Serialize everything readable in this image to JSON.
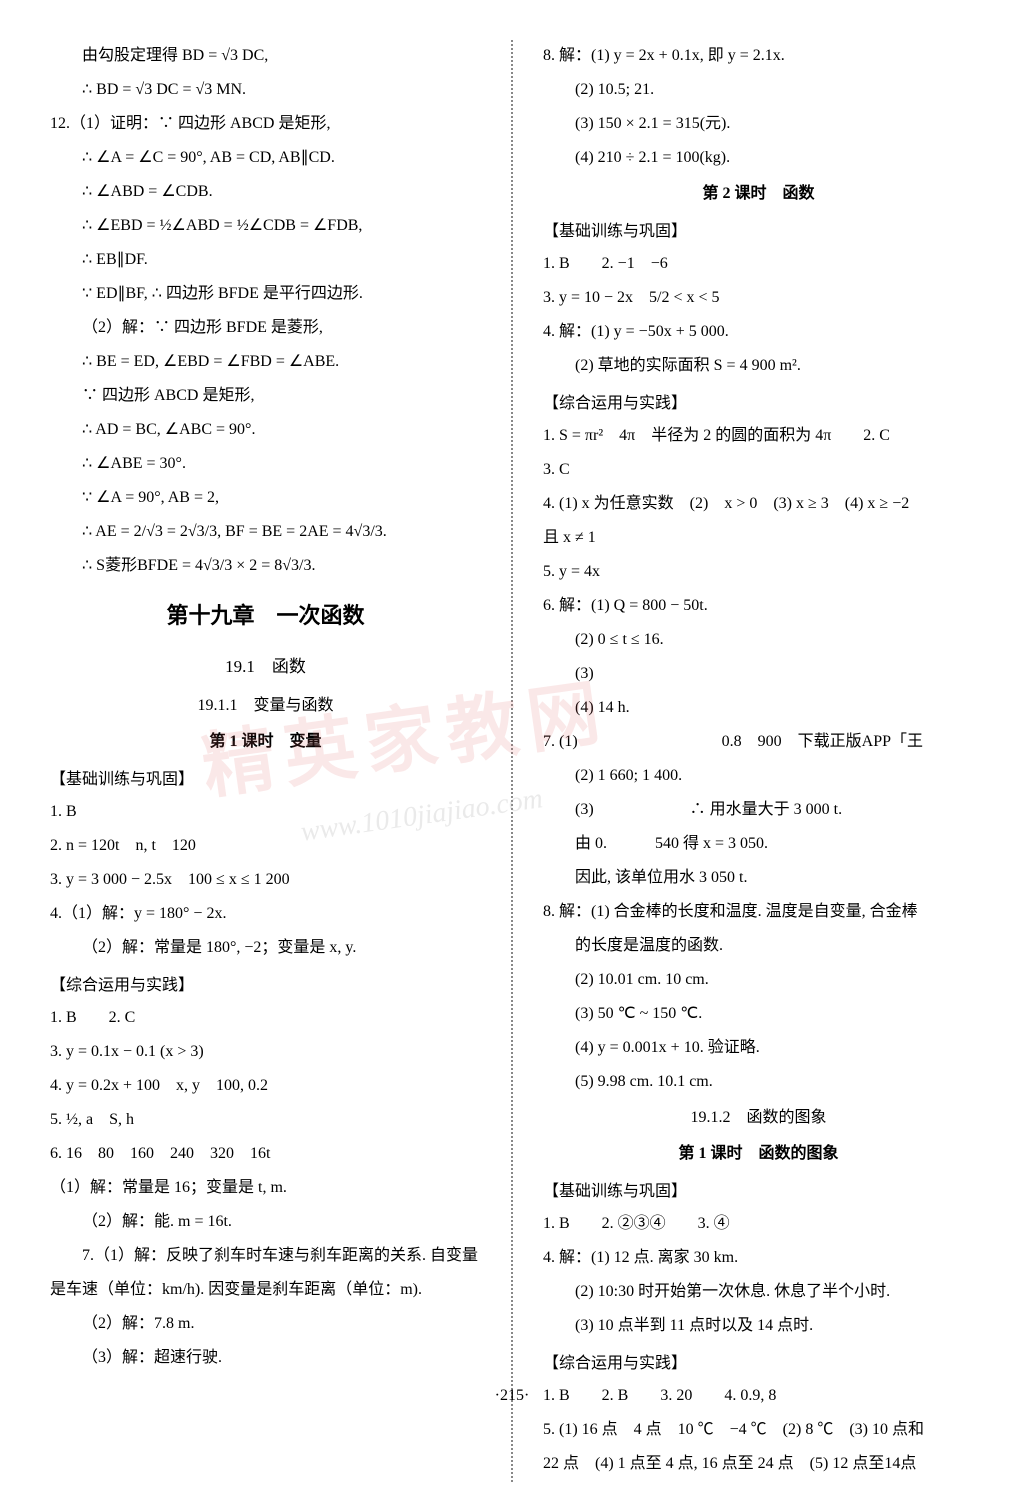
{
  "page_number": "·215·",
  "watermark_text": "精英家教网",
  "watermark_url": "www.1010jiajiao.com",
  "left_column": {
    "lines": [
      {
        "text": "由勾股定理得 BD = √3 DC,",
        "indent": 1
      },
      {
        "text": "∴ BD = √3 DC = √3 MN.",
        "indent": 1
      },
      {
        "text": "12.（1）证明：∵ 四边形 ABCD 是矩形,",
        "indent": 0
      },
      {
        "text": "∴ ∠A = ∠C = 90°, AB = CD, AB∥CD.",
        "indent": 1
      },
      {
        "text": "∴ ∠ABD = ∠CDB.",
        "indent": 1
      },
      {
        "text": "∴ ∠EBD = ½∠ABD = ½∠CDB = ∠FDB,",
        "indent": 1
      },
      {
        "text": "∴ EB∥DF.",
        "indent": 1
      },
      {
        "text": "∵ ED∥BF, ∴ 四边形 BFDE 是平行四边形.",
        "indent": 1
      },
      {
        "text": "（2）解：∵ 四边形 BFDE 是菱形,",
        "indent": 1
      },
      {
        "text": "∴ BE = ED, ∠EBD = ∠FBD = ∠ABE.",
        "indent": 1
      },
      {
        "text": "∵ 四边形 ABCD 是矩形,",
        "indent": 1
      },
      {
        "text": "∴ AD = BC, ∠ABC = 90°.",
        "indent": 1
      },
      {
        "text": "∴ ∠ABE = 30°.",
        "indent": 1
      },
      {
        "text": "∵ ∠A = 90°, AB = 2,",
        "indent": 1
      },
      {
        "text": "∴ AE = 2/√3 = 2√3/3, BF = BE = 2AE = 4√3/3.",
        "indent": 1
      },
      {
        "text": "∴ S菱形BFDE = 4√3/3 × 2 = 8√3/3.",
        "indent": 1
      }
    ],
    "chapter": "第十九章　一次函数",
    "section": "19.1　函数",
    "subsection": "19.1.1　变量与函数",
    "lesson": "第 1 课时　变量",
    "header1": "【基础训练与巩固】",
    "basic": [
      {
        "text": "1. B",
        "indent": 0
      },
      {
        "text": "2. n = 120t　n, t　120",
        "indent": 0
      },
      {
        "text": "3. y = 3 000 − 2.5x　100 ≤ x ≤ 1 200",
        "indent": 0
      },
      {
        "text": "4.（1）解：y = 180° − 2x.",
        "indent": 0
      },
      {
        "text": "（2）解：常量是 180°, −2；变量是 x, y.",
        "indent": 1
      }
    ],
    "header2": "【综合运用与实践】",
    "practice": [
      {
        "text": "1. B　　2. C",
        "indent": 0
      },
      {
        "text": "3. y = 0.1x − 0.1 (x > 3)",
        "indent": 0
      },
      {
        "text": "4. y = 0.2x + 100　x, y　100, 0.2",
        "indent": 0
      },
      {
        "text": "5. ½, a　S, h",
        "indent": 0
      },
      {
        "text": "6. 16　80　160　240　320　16t",
        "indent": 0
      },
      {
        "text": "（1）解：常量是 16；变量是 t, m.",
        "indent": 1
      },
      {
        "text": "（2）解：能. m = 16t.",
        "indent": 1
      },
      {
        "text": "7.（1）解：反映了刹车时车速与刹车距离的关系. 自变量",
        "indent": 0
      },
      {
        "text": "是车速（单位：km/h). 因变量是刹车距离（单位：m).",
        "indent": 1
      },
      {
        "text": "（2）解：7.8 m.",
        "indent": 1
      },
      {
        "text": "（3）解：超速行驶.",
        "indent": 1
      }
    ]
  },
  "right_column": {
    "top": [
      {
        "text": "8. 解：(1) y = 2x + 0.1x, 即 y = 2.1x.",
        "indent": 0
      },
      {
        "text": "(2) 10.5; 21.",
        "indent": 1
      },
      {
        "text": "(3) 150 × 2.1 = 315(元).",
        "indent": 1
      },
      {
        "text": "(4) 210 ÷ 2.1 = 100(kg).",
        "indent": 1
      }
    ],
    "lesson2": "第 2 课时　函数",
    "header1": "【基础训练与巩固】",
    "basic": [
      {
        "text": "1. B　　2. −1　−6",
        "indent": 0
      },
      {
        "text": "3. y = 10 − 2x　5/2 < x < 5",
        "indent": 0
      },
      {
        "text": "4. 解：(1) y = −50x + 5 000.",
        "indent": 0
      },
      {
        "text": "(2) 草地的实际面积 S = 4 900 m².",
        "indent": 1
      }
    ],
    "header2": "【综合运用与实践】",
    "practice": [
      {
        "text": "1. S = πr²　4π　半径为 2 的圆的面积为 4π　　2. C",
        "indent": 0
      },
      {
        "text": "3. C",
        "indent": 0
      },
      {
        "text": "4. (1) x 为任意实数　(2)　x > 0　(3) x ≥ 3　(4) x ≥ −2",
        "indent": 0
      },
      {
        "text": "且 x ≠ 1",
        "indent": 0
      },
      {
        "text": "5. y = 4x",
        "indent": 0
      },
      {
        "text": "6. 解：(1) Q = 800 − 50t.",
        "indent": 0
      },
      {
        "text": "(2) 0 ≤ t ≤ 16.",
        "indent": 1
      },
      {
        "text": "(3)",
        "indent": 1
      },
      {
        "text": "(4) 14 h.",
        "indent": 1
      },
      {
        "text": "7. (1)　　　　　　　　　0.8　900　下载正版APP「王",
        "indent": 0
      },
      {
        "text": "(2) 1 660; 1 400.",
        "indent": 1
      },
      {
        "text": "(3)　　　　　　∴ 用水量大于 3 000 t.",
        "indent": 1
      },
      {
        "text": "由 0.　　　540 得 x = 3 050.",
        "indent": 1
      },
      {
        "text": "因此, 该单位用水 3 050 t.",
        "indent": 1
      },
      {
        "text": "8. 解：(1) 合金棒的长度和温度. 温度是自变量, 合金棒",
        "indent": 0
      },
      {
        "text": "的长度是温度的函数.",
        "indent": 1
      },
      {
        "text": "(2) 10.01 cm. 10 cm.",
        "indent": 1
      },
      {
        "text": "(3) 50 ℃ ~ 150 ℃.",
        "indent": 1
      },
      {
        "text": "(4) y = 0.001x + 10. 验证略.",
        "indent": 1
      },
      {
        "text": "(5) 9.98 cm. 10.1 cm.",
        "indent": 1
      }
    ],
    "subsection2": "19.1.2　函数的图象",
    "lesson3": "第 1 课时　函数的图象",
    "header3": "【基础训练与巩固】",
    "basic2": [
      {
        "text": "1. B　　2. ②③④　　3. ④",
        "indent": 0
      },
      {
        "text": "4. 解：(1) 12 点. 离家 30 km.",
        "indent": 0
      },
      {
        "text": "(2) 10:30 时开始第一次休息. 休息了半个小时.",
        "indent": 1
      },
      {
        "text": "(3) 10 点半到 11 点时以及 14 点时.",
        "indent": 1
      }
    ],
    "header4": "【综合运用与实践】",
    "practice2": [
      {
        "text": "1. B　　2. B　　3. 20　　4. 0.9, 8",
        "indent": 0
      },
      {
        "text": "5. (1) 16 点　4 点　10 ℃　−4 ℃　(2) 8 ℃　(3) 10 点和",
        "indent": 0
      },
      {
        "text": "22 点　(4) 1 点至 4 点, 16 点至 24 点　(5) 12 点至14点",
        "indent": 0
      }
    ]
  }
}
